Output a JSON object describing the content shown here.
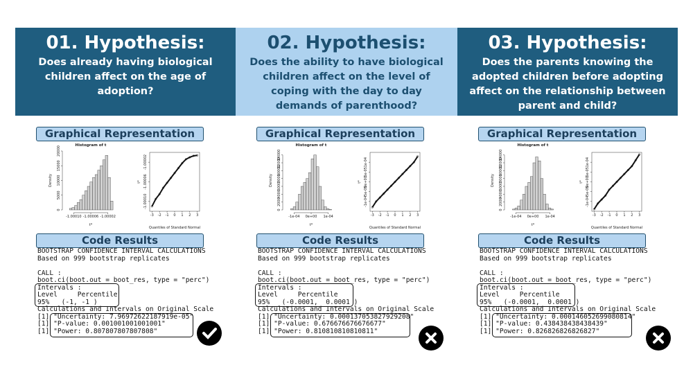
{
  "columns": [
    {
      "title": "01. Hypothesis:",
      "question": "Does already having biological children affect on the age of adoption?",
      "graph_label": "Graphical Representation",
      "histogram": {
        "title": "Histogram of t",
        "xlabel": "t*",
        "ylabel": "Density",
        "xlim": [
          -1.00012,
          -1.0
        ],
        "ylim": [
          0,
          20000
        ],
        "xticks": [
          {
            "value": -1.0001,
            "label": "-1.00010"
          },
          {
            "value": -1.00006,
            "label": "-1.00006"
          },
          {
            "value": -1.00002,
            "label": "-1.00002"
          }
        ],
        "yticks": [
          0,
          5000,
          10000,
          15000,
          20000
        ],
        "bins": [
          -1.00011,
          -1.000104,
          -1.000098,
          -1.000092,
          -1.000086,
          -1.00008,
          -1.000074,
          -1.000068,
          -1.000062,
          -1.000056,
          -1.00005,
          -1.000044,
          -1.000038,
          -1.000032,
          -1.000026,
          -1.00002,
          -1.000014,
          -1.000008
        ],
        "counts": [
          500,
          800,
          1500,
          2500,
          3500,
          5000,
          6500,
          8000,
          9500,
          11000,
          12000,
          13500,
          15000,
          17000,
          18500,
          11000,
          3000
        ]
      },
      "qq": {
        "xlabel": "Quantiles of Standard Normal",
        "ylabel": "t*",
        "xlim": [
          -3.3,
          3.3
        ],
        "ylim": [
          -1.00012,
          -1.0
        ],
        "xticks": [
          -3,
          -2,
          -1,
          0,
          1,
          2,
          3
        ],
        "yticks": [
          {
            "value": -1.0001,
            "label": "-1.00010"
          },
          {
            "value": -1.00006,
            "label": "-1.00006"
          },
          {
            "value": -1.00002,
            "label": "-1.00002"
          }
        ],
        "x": [
          -3,
          -2.5,
          -2,
          -1.5,
          -1,
          -0.5,
          0,
          0.5,
          1,
          1.5,
          2,
          2.5,
          3
        ],
        "values": [
          -1.00011,
          -1.000095,
          -1.000085,
          -1.000072,
          -1.000062,
          -1.000052,
          -1.000042,
          -1.000032,
          -1.000022,
          -1.000014,
          -1.00001,
          -1.000007,
          -1.000006
        ]
      },
      "code_label": "Code Results",
      "code": {
        "header": [
          "BOOTSTRAP CONFIDENCE INTERVAL CALCULATIONS",
          "Based on 999 bootstrap replicates"
        ],
        "call": [
          "CALL :",
          "boot.ci(boot.out = boot_res, type = \"perc\")"
        ],
        "intervals": [
          "Intervals :",
          "Level     Percentile",
          "95%   (-1, -1 )"
        ],
        "scale": "Calculations and Intervals on Original Scale",
        "results": [
          "[1] \"Uncertainty: 7.96972622187919e-05\"",
          "[1] \"P-value: 0.001001001001001\"",
          "[1] \"Power: 0.807807807807808\""
        ]
      }
    },
    {
      "title": "02. Hypothesis:",
      "question": "Does the ability to have biological children affect on the level of coping with the day to day demands of parenthood?",
      "graph_label": "Graphical Representation",
      "histogram": {
        "title": "Histogram of t",
        "xlabel": "t*",
        "ylabel": "Density",
        "xlim": [
          -0.00015,
          0.00015
        ],
        "ylim": [
          0,
          15000
        ],
        "xticks": [
          {
            "value": -0.0001,
            "label": "-1e-04"
          },
          {
            "value": 0,
            "label": "0e+00"
          },
          {
            "value": 0.0001,
            "label": "1e-04"
          }
        ],
        "yticks": [
          0,
          2000,
          4000,
          6000,
          8000,
          10000,
          12000,
          14000
        ],
        "bins": [
          -0.00012,
          -0.000105,
          -9e-05,
          -7.5e-05,
          -6e-05,
          -4.5e-05,
          -3e-05,
          -1.5e-05,
          0,
          1.5e-05,
          3e-05,
          4.5e-05,
          6e-05,
          7.5e-05,
          9e-05,
          0.000105,
          0.00012
        ],
        "counts": [
          300,
          800,
          2000,
          4000,
          6000,
          7000,
          8000,
          9500,
          13000,
          14000,
          11000,
          6000,
          2500,
          800,
          300,
          100
        ]
      },
      "qq": {
        "xlabel": "Quantiles of Standard Normal",
        "ylabel": "t*",
        "xlim": [
          -3.3,
          3.3
        ],
        "ylim": [
          -0.00015,
          0.00015
        ],
        "xticks": [
          -3,
          -2,
          -1,
          0,
          1,
          2,
          3
        ],
        "yticks": [
          {
            "value": -0.0001,
            "label": "-1e-04"
          },
          {
            "value": -5e-05,
            "label": "-5e-05"
          },
          {
            "value": 0,
            "label": "0e+00"
          },
          {
            "value": 5e-05,
            "label": "5e-05"
          },
          {
            "value": 0.0001,
            "label": "1e-04"
          }
        ],
        "x": [
          -3,
          -2.5,
          -2,
          -1.5,
          -1,
          -0.5,
          0,
          0.5,
          1,
          1.5,
          2,
          2.5,
          3
        ],
        "values": [
          -0.00013,
          -0.0001,
          -8e-05,
          -6e-05,
          -4e-05,
          -2e-05,
          0,
          2e-05,
          4e-05,
          6e-05,
          8e-05,
          0.0001,
          0.00013
        ]
      },
      "code_label": "Code Results",
      "code": {
        "header": [
          "BOOTSTRAP CONFIDENCE INTERVAL CALCULATIONS",
          "Based on 999 bootstrap replicates"
        ],
        "call": [
          "CALL :",
          "boot.ci(boot.out = boot_res, type = \"perc\")"
        ],
        "intervals": [
          "Intervals :",
          "Level     Percentile",
          "95%   (-0.0001,  0.0001 )"
        ],
        "scale": "Calculations and Intervals on Original Scale",
        "results": [
          "[1] \"Uncertainty: 0.000137053827929208\"",
          "[1] \"P-value: 0.676676676676677\"",
          "[1] \"Power: 0.810810810810811\""
        ]
      }
    },
    {
      "title": "03. Hypothesis:",
      "question": "Does the parents knowing the adopted children before adopting affect on the relationship between parent and child?",
      "graph_label": "Graphical Representation",
      "histogram": {
        "title": "Histogram of t",
        "xlabel": "t*",
        "ylabel": "Density",
        "xlim": [
          -0.00015,
          0.00015
        ],
        "ylim": [
          0,
          15000
        ],
        "xticks": [
          {
            "value": -0.0001,
            "label": "-1e-04"
          },
          {
            "value": 0,
            "label": "0e+00"
          },
          {
            "value": 0.0001,
            "label": "1e-04"
          }
        ],
        "yticks": [
          0,
          2000,
          4000,
          6000,
          8000,
          10000,
          12000,
          14000
        ],
        "bins": [
          -0.00012,
          -0.000105,
          -9e-05,
          -7.5e-05,
          -6e-05,
          -4.5e-05,
          -3e-05,
          -1.5e-05,
          0,
          1.5e-05,
          3e-05,
          4.5e-05,
          6e-05,
          7.5e-05,
          9e-05,
          0.000105,
          0.00012
        ],
        "counts": [
          200,
          500,
          1000,
          2500,
          4000,
          6000,
          7000,
          8500,
          12000,
          13500,
          12500,
          8000,
          4000,
          1500,
          500,
          200
        ]
      },
      "qq": {
        "xlabel": "Quantiles of Standard Normal",
        "ylabel": "t*",
        "xlim": [
          -3.3,
          3.3
        ],
        "ylim": [
          -0.00015,
          0.00015
        ],
        "xticks": [
          -3,
          -2,
          -1,
          0,
          1,
          2,
          3
        ],
        "yticks": [
          {
            "value": -0.0001,
            "label": "-1e-04"
          },
          {
            "value": -5e-05,
            "label": "-5e-05"
          },
          {
            "value": 0,
            "label": "0e+00"
          },
          {
            "value": 5e-05,
            "label": "5e-05"
          },
          {
            "value": 0.0001,
            "label": "1e-04"
          }
        ],
        "x": [
          -3,
          -2.5,
          -2,
          -1.5,
          -1,
          -0.5,
          0,
          0.5,
          1,
          1.5,
          2,
          2.5,
          3
        ],
        "values": [
          -0.00014,
          -0.00011,
          -9e-05,
          -7e-05,
          -4e-05,
          -2e-05,
          0,
          2e-05,
          4e-05,
          6e-05,
          8e-05,
          0.00011,
          0.00014
        ]
      },
      "code_label": "Code Results",
      "code": {
        "header": [
          "BOOTSTRAP CONFIDENCE INTERVAL CALCULATIONS",
          "Based on 999 bootstrap replicates"
        ],
        "call": [
          "CALL :",
          "boot.ci(boot.out = boot_res, type = \"perc\")"
        ],
        "intervals": [
          "Intervals :",
          "Level     Percentile",
          "95%   (-0.0001,  0.0001 )"
        ],
        "scale": "Calculations and Intervals on Original Scale",
        "results": [
          "[1] \"Uncertainty: 0.000146052699080814\"",
          "[1] \"P-value: 0.438438438438439\"",
          "[1] \"Power: 0.826826826826827\""
        ]
      }
    }
  ]
}
